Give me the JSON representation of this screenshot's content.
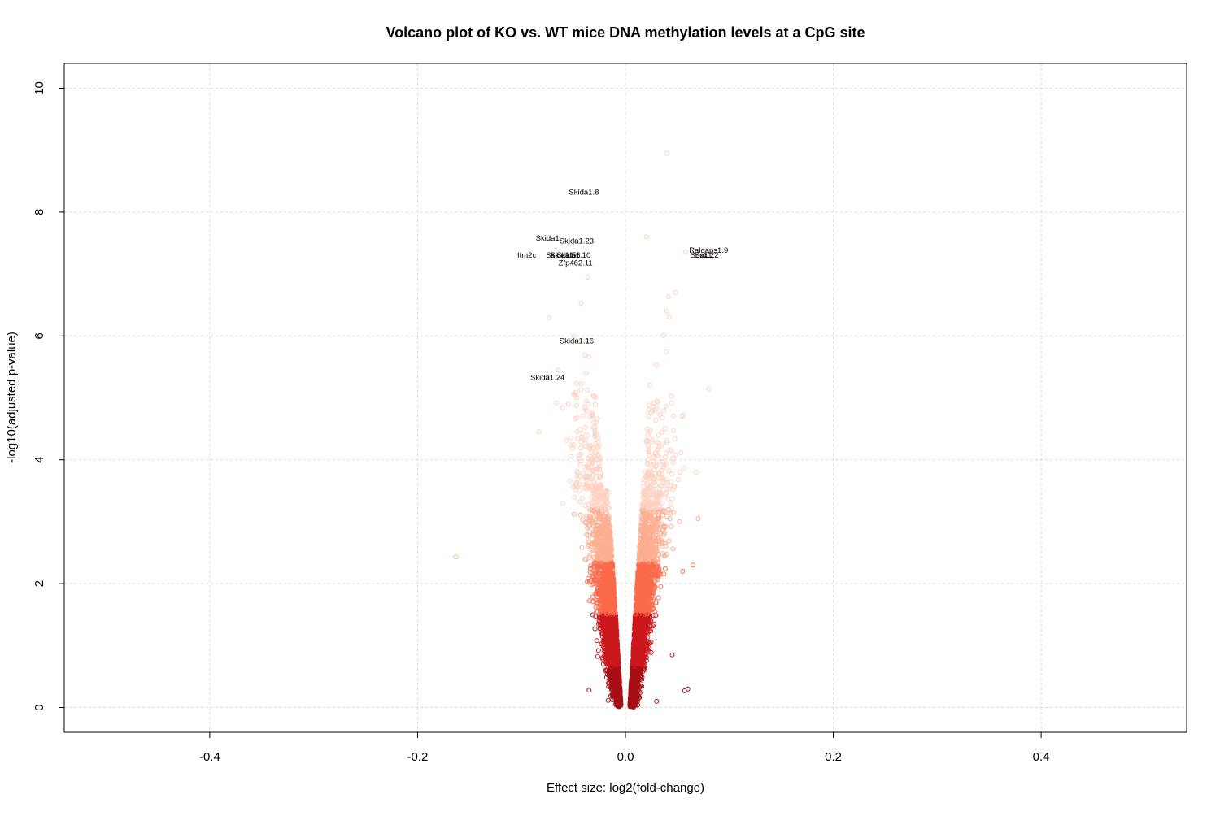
{
  "chart_data": {
    "type": "scatter",
    "title": "Volcano plot of KO vs. WT mice DNA methylation levels at a CpG site",
    "xlabel": "Effect size: log2(fold-change)",
    "ylabel": "-log10(adjusted p-value)",
    "xlim": [
      -0.54,
      0.54
    ],
    "ylim": [
      -0.4,
      10.4
    ],
    "xticks": [
      -0.4,
      -0.2,
      0.0,
      0.2,
      0.4
    ],
    "xtick_labels": [
      "-0.4",
      "-0.2",
      "0.0",
      "0.2",
      "0.4"
    ],
    "yticks": [
      0,
      2,
      4,
      6,
      8,
      10
    ],
    "ytick_labels": [
      "0",
      "2",
      "4",
      "6",
      "8",
      "10"
    ],
    "grid": true,
    "color_bands": [
      {
        "ymin": 0.0,
        "ymax": 0.65,
        "color": "#a50f15"
      },
      {
        "ymin": 0.65,
        "ymax": 1.5,
        "color": "#cb181d"
      },
      {
        "ymin": 1.5,
        "ymax": 2.35,
        "color": "#fb6a4a"
      },
      {
        "ymin": 2.35,
        "ymax": 3.2,
        "color": "#fcae91"
      },
      {
        "ymin": 3.2,
        "ymax": 11.0,
        "color": "#fdd0bf"
      }
    ],
    "labeled_points": [
      {
        "label": "Skida1.8",
        "x": -0.04,
        "y": 8.32
      },
      {
        "label": "Skida1",
        "x": -0.075,
        "y": 7.58
      },
      {
        "label": "Skida1.23",
        "x": -0.047,
        "y": 7.53
      },
      {
        "label": "Itm2c",
        "x": -0.095,
        "y": 7.3
      },
      {
        "label": "Skida1.5",
        "x": -0.062,
        "y": 7.3
      },
      {
        "label": "Skida1.6",
        "x": -0.058,
        "y": 7.3
      },
      {
        "label": "Skida1.10",
        "x": -0.05,
        "y": 7.3
      },
      {
        "label": "Zfp462.11",
        "x": -0.048,
        "y": 7.18
      },
      {
        "label": "Skida1.16",
        "x": -0.047,
        "y": 5.92
      },
      {
        "label": "Skida1.24",
        "x": -0.075,
        "y": 5.33
      },
      {
        "label": "Ralgaps1.9",
        "x": 0.08,
        "y": 7.38
      },
      {
        "label": "Sox1.2",
        "x": 0.074,
        "y": 7.3
      },
      {
        "label": "Sox1.2",
        "x": 0.078,
        "y": 7.3
      }
    ],
    "outlier_points": [
      {
        "x": 0.04,
        "y": 8.95
      },
      {
        "x": -0.04,
        "y": 8.32
      },
      {
        "x": 0.02,
        "y": 7.6
      },
      {
        "x": -0.04,
        "y": 7.32
      },
      {
        "x": 0.058,
        "y": 7.36
      },
      {
        "x": 0.065,
        "y": 7.3
      },
      {
        "x": -0.163,
        "y": 2.43
      },
      {
        "x": -0.083,
        "y": 4.45
      },
      {
        "x": -0.065,
        "y": 5.45
      },
      {
        "x": -0.05,
        "y": 6.0
      },
      {
        "x": 0.07,
        "y": 3.05
      },
      {
        "x": 0.06,
        "y": 0.3
      },
      {
        "x": 0.057,
        "y": 0.27
      },
      {
        "x": 0.045,
        "y": 0.85
      },
      {
        "x": 0.065,
        "y": 2.3
      },
      {
        "x": 0.055,
        "y": 2.2
      },
      {
        "x": -0.06,
        "y": 3.3
      },
      {
        "x": 0.052,
        "y": 3.0
      },
      {
        "x": 0.068,
        "y": 3.8
      },
      {
        "x": -0.055,
        "y": 4.9
      },
      {
        "x": 0.055,
        "y": 4.7
      },
      {
        "x": -0.035,
        "y": 0.28
      },
      {
        "x": 0.03,
        "y": 0.1
      },
      {
        "x": 0.048,
        "y": 6.7
      },
      {
        "x": 0.04,
        "y": 6.4
      }
    ]
  }
}
